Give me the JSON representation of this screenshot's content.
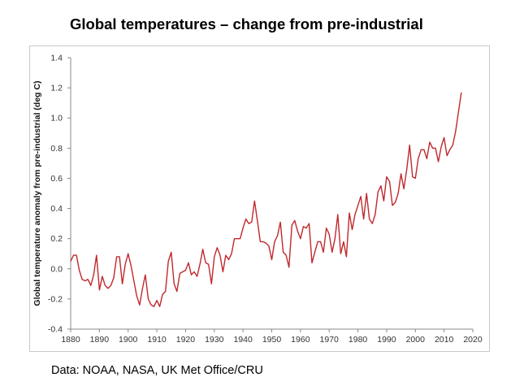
{
  "title": "Global temperatures – change from pre-industrial",
  "source": "Data: NOAA, NASA, UK Met Office/CRU",
  "chart_data": {
    "type": "line",
    "title": "Global temperatures – change from pre-industrial",
    "xlabel": "",
    "ylabel": "Global temperature anomaly from pre-industrial (deg C)",
    "xlim": [
      1880,
      2020
    ],
    "ylim": [
      -0.4,
      1.4
    ],
    "xticks": [
      "1880",
      "1890",
      "1900",
      "1910",
      "1920",
      "1930",
      "1940",
      "1950",
      "1960",
      "1970",
      "1980",
      "1990",
      "2000",
      "2010",
      "2020"
    ],
    "yticks": [
      "-0.4",
      "-0.2",
      "0.0",
      "0.2",
      "0.4",
      "0.6",
      "0.8",
      "1.0",
      "1.2",
      "1.4"
    ],
    "grid": false,
    "legend": "none",
    "series": [
      {
        "color": "#c0282d",
        "x": [
          1880,
          1881,
          1882,
          1883,
          1884,
          1885,
          1886,
          1887,
          1888,
          1889,
          1890,
          1891,
          1892,
          1893,
          1894,
          1895,
          1896,
          1897,
          1898,
          1899,
          1900,
          1901,
          1902,
          1903,
          1904,
          1905,
          1906,
          1907,
          1908,
          1909,
          1910,
          1911,
          1912,
          1913,
          1914,
          1915,
          1916,
          1917,
          1918,
          1919,
          1920,
          1921,
          1922,
          1923,
          1924,
          1925,
          1926,
          1927,
          1928,
          1929,
          1930,
          1931,
          1932,
          1933,
          1934,
          1935,
          1936,
          1937,
          1938,
          1939,
          1940,
          1941,
          1942,
          1943,
          1944,
          1945,
          1946,
          1947,
          1948,
          1949,
          1950,
          1951,
          1952,
          1953,
          1954,
          1955,
          1956,
          1957,
          1958,
          1959,
          1960,
          1961,
          1962,
          1963,
          1964,
          1965,
          1966,
          1967,
          1968,
          1969,
          1970,
          1971,
          1972,
          1973,
          1974,
          1975,
          1976,
          1977,
          1978,
          1979,
          1980,
          1981,
          1982,
          1983,
          1984,
          1985,
          1986,
          1987,
          1988,
          1989,
          1990,
          1991,
          1992,
          1993,
          1994,
          1995,
          1996,
          1997,
          1998,
          1999,
          2000,
          2001,
          2002,
          2003,
          2004,
          2005,
          2006,
          2007,
          2008,
          2009,
          2010,
          2011,
          2012,
          2013,
          2014,
          2015,
          2016
        ],
        "y": [
          0.05,
          0.09,
          0.09,
          -0.01,
          -0.07,
          -0.08,
          -0.07,
          -0.11,
          -0.04,
          0.09,
          -0.14,
          -0.05,
          -0.11,
          -0.13,
          -0.11,
          -0.06,
          0.08,
          0.08,
          -0.1,
          0.03,
          0.1,
          0.02,
          -0.08,
          -0.18,
          -0.24,
          -0.13,
          -0.04,
          -0.2,
          -0.24,
          -0.25,
          -0.21,
          -0.25,
          -0.17,
          -0.15,
          0.05,
          0.11,
          -0.1,
          -0.15,
          -0.03,
          -0.02,
          -0.01,
          0.04,
          -0.04,
          -0.02,
          -0.05,
          0.03,
          0.13,
          0.04,
          0.03,
          -0.1,
          0.08,
          0.14,
          0.09,
          -0.02,
          0.09,
          0.06,
          0.1,
          0.2,
          0.2,
          0.2,
          0.27,
          0.33,
          0.3,
          0.31,
          0.45,
          0.32,
          0.18,
          0.18,
          0.17,
          0.15,
          0.06,
          0.18,
          0.22,
          0.31,
          0.11,
          0.09,
          0.01,
          0.29,
          0.32,
          0.25,
          0.2,
          0.28,
          0.27,
          0.3,
          0.04,
          0.11,
          0.18,
          0.18,
          0.11,
          0.27,
          0.23,
          0.11,
          0.2,
          0.36,
          0.1,
          0.18,
          0.08,
          0.37,
          0.26,
          0.36,
          0.42,
          0.48,
          0.33,
          0.5,
          0.33,
          0.3,
          0.36,
          0.51,
          0.55,
          0.45,
          0.61,
          0.58,
          0.42,
          0.44,
          0.5,
          0.63,
          0.53,
          0.66,
          0.82,
          0.61,
          0.6,
          0.73,
          0.79,
          0.79,
          0.73,
          0.84,
          0.8,
          0.8,
          0.71,
          0.81,
          0.87,
          0.75,
          0.79,
          0.82,
          0.91,
          1.04,
          1.17
        ]
      }
    ]
  }
}
